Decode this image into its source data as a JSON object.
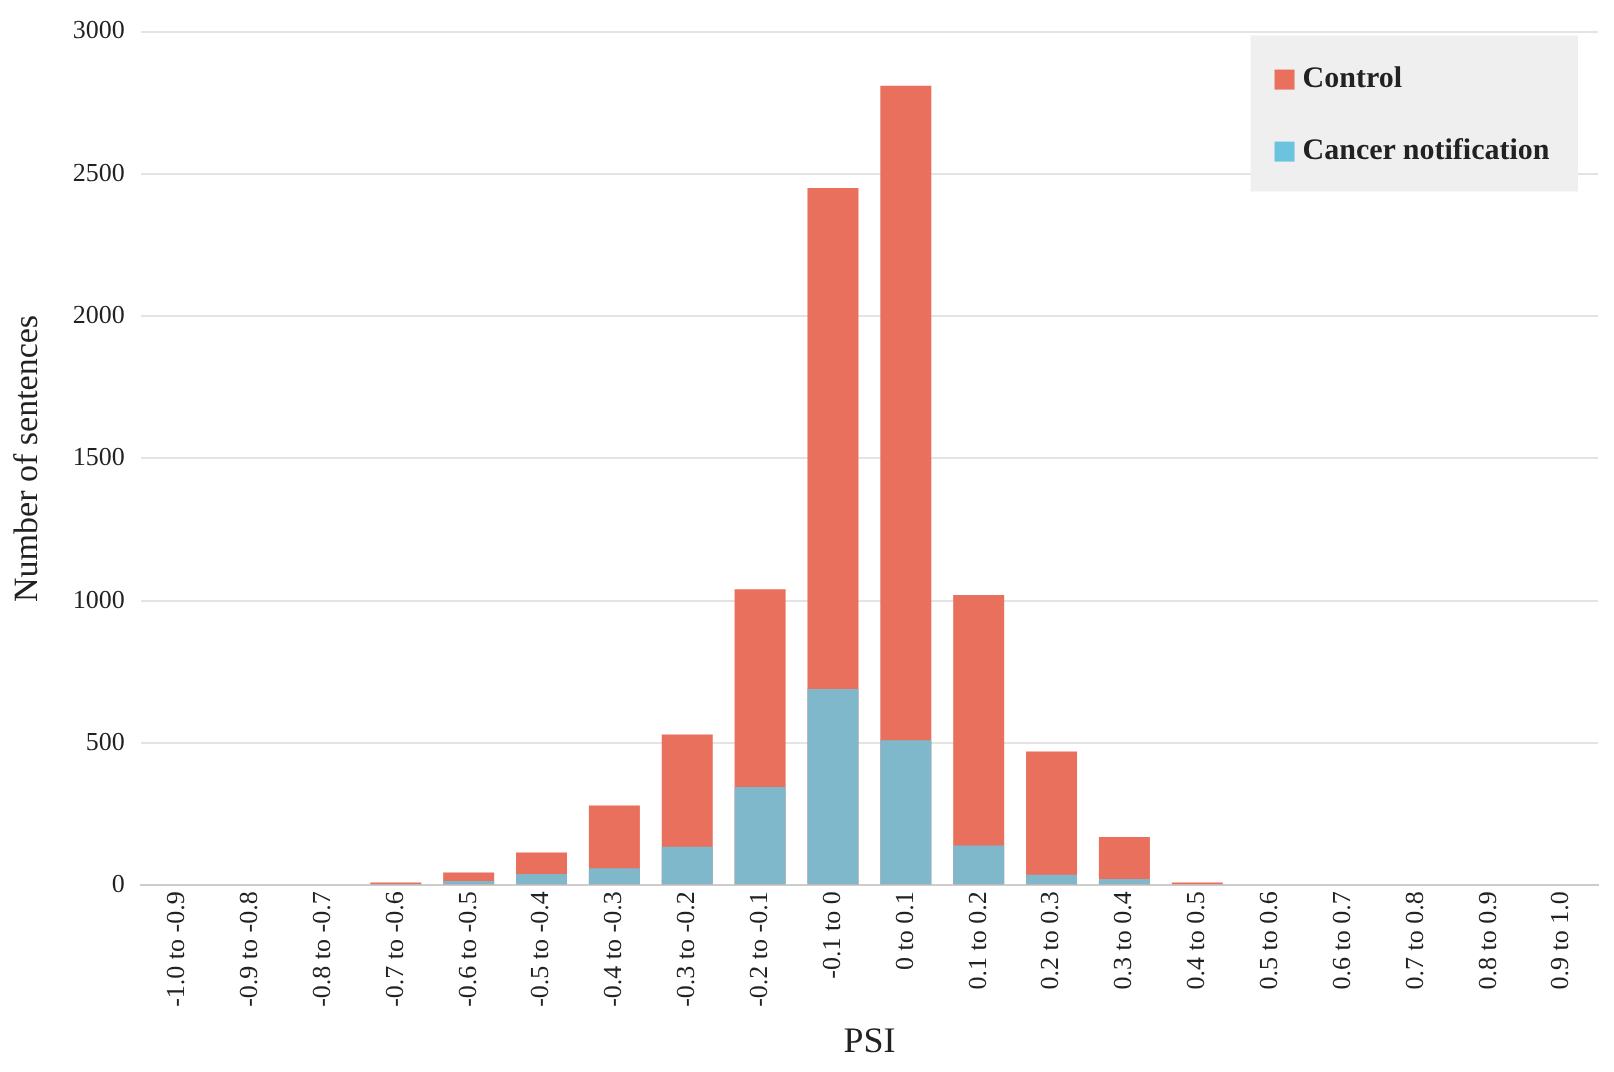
{
  "chart_data": {
    "type": "bar",
    "xlabel": "PSI",
    "ylabel": "Number of sentences",
    "categories": [
      "-1.0 to -0.9",
      "-0.9 to -0.8",
      "-0.8 to -0.7",
      "-0.7 to -0.6",
      "-0.6 to -0.5",
      "-0.5 to -0.4",
      "-0.4 to -0.3",
      "-0.3 to -0.2",
      "-0.2 to -0.1",
      "-0.1 to 0",
      "0 to 0.1",
      "0.1 to 0.2",
      "0.2 to 0.3",
      "0.3 to 0.4",
      "0.4 to 0.5",
      "0.5 to 0.6",
      "0.6 to 0.7",
      "0.7 to 0.8",
      "0.8 to 0.9",
      "0.9 to 1.0"
    ],
    "series": [
      {
        "name": "Control",
        "color": "#e8705c",
        "values": [
          0,
          0,
          0,
          10,
          45,
          115,
          280,
          530,
          1040,
          2450,
          2810,
          1020,
          470,
          170,
          10,
          0,
          0,
          0,
          0,
          0
        ]
      },
      {
        "name": "Cancer notification",
        "color": "#6cc3de",
        "values": [
          0,
          0,
          0,
          3,
          15,
          40,
          60,
          135,
          345,
          690,
          510,
          140,
          37,
          22,
          null,
          0,
          0,
          0,
          0,
          0
        ]
      }
    ],
    "ylim": [
      0,
      3000
    ],
    "yticks": [
      0,
      500,
      1000,
      1500,
      2000,
      2500,
      3000
    ],
    "grid": "y",
    "legend": "top right"
  }
}
